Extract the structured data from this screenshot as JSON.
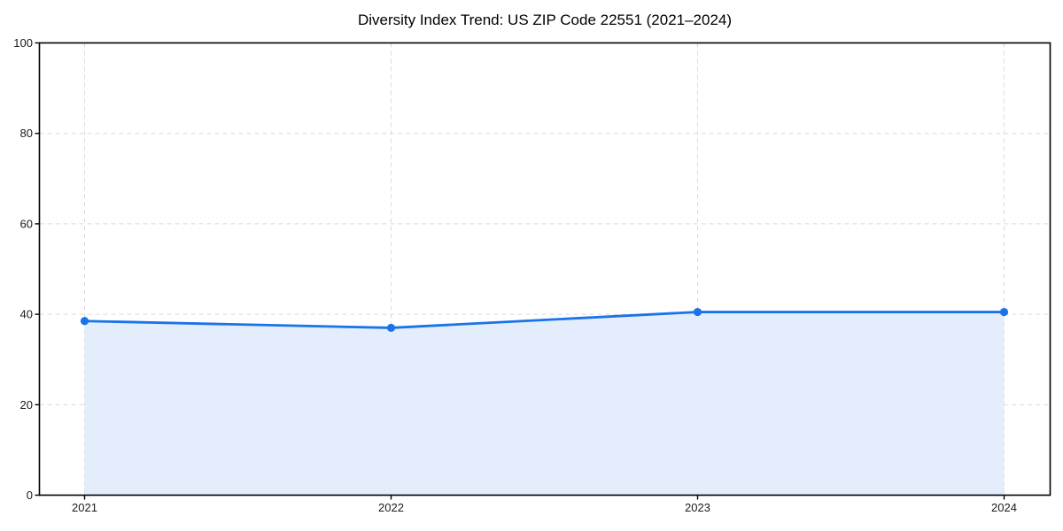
{
  "chart_data": {
    "type": "line",
    "title": "Diversity Index Trend: US ZIP Code 22551 (2021–2024)",
    "categories": [
      "2021",
      "2022",
      "2023",
      "2024"
    ],
    "series": [
      {
        "name": "Diversity Index",
        "values": [
          38.5,
          37,
          40.5,
          40.5
        ]
      }
    ],
    "xlabel": "",
    "ylabel": "",
    "ylim": [
      0,
      100
    ],
    "yticks": [
      0,
      20,
      40,
      60,
      80,
      100
    ],
    "grid": true,
    "grid_style": "dashed",
    "legend_position": "none",
    "area_fill": true,
    "marker": "circle",
    "colors": {
      "line": "#1a73e8",
      "marker": "#1a73e8",
      "area": "#e3edfb",
      "grid": "#d9d9d9",
      "spine": "#000000",
      "tick_text": "#1a1a1a",
      "title_text": "#000000",
      "background": "#ffffff"
    }
  }
}
